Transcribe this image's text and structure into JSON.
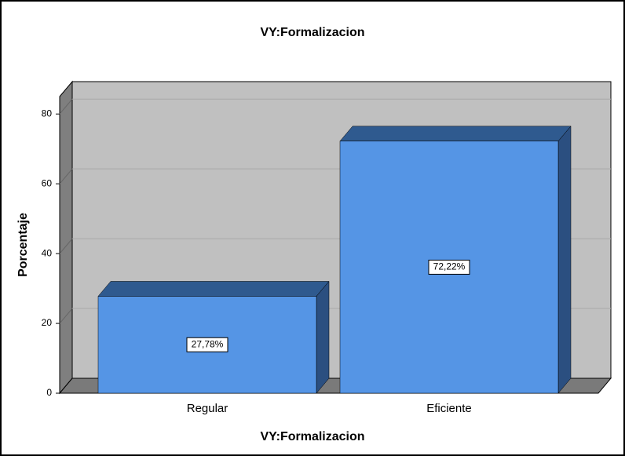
{
  "chart_data": {
    "type": "bar",
    "title": "VY:Formalizacion",
    "x_label": "VY:Formalizacion",
    "y_label": "Porcentaje",
    "categories": [
      "Regular",
      "Eficiente"
    ],
    "values": [
      27.78,
      72.22
    ],
    "value_labels": [
      "27,78%",
      "72,22%"
    ],
    "color": "#5595e5",
    "ylim": [
      0,
      85
    ],
    "yticks": [
      0,
      20,
      40,
      60,
      80
    ],
    "grid": true
  }
}
